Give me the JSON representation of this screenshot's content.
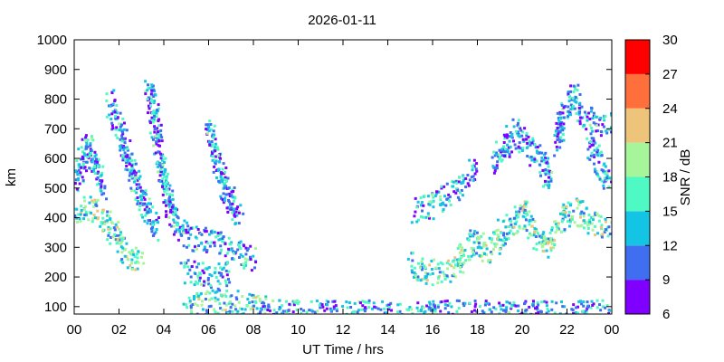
{
  "chart_data": {
    "type": "heatmap",
    "title": "2026-01-11",
    "xlabel": "UT Time / hrs",
    "ylabel": "km",
    "xlim": [
      0,
      24
    ],
    "ylim": [
      75,
      1000
    ],
    "x_ticks": [
      "00",
      "02",
      "04",
      "06",
      "08",
      "10",
      "12",
      "14",
      "16",
      "18",
      "20",
      "22",
      "00"
    ],
    "y_ticks": [
      100,
      200,
      300,
      400,
      500,
      600,
      700,
      800,
      900,
      1000
    ],
    "grid": false,
    "colorbar": {
      "label": "SNR / dB",
      "range": [
        6,
        30
      ],
      "ticks": [
        6,
        9,
        12,
        15,
        18,
        21,
        24,
        27,
        30
      ],
      "bins": [
        {
          "from": 6,
          "to": 9,
          "color": "#7f00ff"
        },
        {
          "from": 9,
          "to": 12,
          "color": "#3f6ff0"
        },
        {
          "from": 12,
          "to": 15,
          "color": "#14c4e4"
        },
        {
          "from": 15,
          "to": 18,
          "color": "#4ff9c4"
        },
        {
          "from": 18,
          "to": 21,
          "color": "#a6f59a"
        },
        {
          "from": 21,
          "to": 24,
          "color": "#eec47a"
        },
        {
          "from": 24,
          "to": 27,
          "color": "#ff6f3c"
        },
        {
          "from": 27,
          "to": 30,
          "color": "#ff0000"
        }
      ]
    },
    "echo_traces": [
      {
        "name": "",
        "snr": 14,
        "points": [
          [
            0.0,
            420
          ],
          [
            0.5,
            440
          ],
          [
            1.0,
            420
          ],
          [
            1.5,
            380
          ],
          [
            2.0,
            320
          ],
          [
            2.5,
            270
          ],
          [
            3.0,
            260
          ]
        ]
      },
      {
        "name": "",
        "snr": 10,
        "points": [
          [
            0.0,
            520
          ],
          [
            0.3,
            600
          ],
          [
            0.6,
            650
          ],
          [
            1.0,
            560
          ],
          [
            1.2,
            500
          ]
        ]
      },
      {
        "name": "",
        "snr": 10,
        "points": [
          [
            1.5,
            800
          ],
          [
            2.0,
            700
          ],
          [
            2.4,
            600
          ],
          [
            2.8,
            500
          ],
          [
            3.2,
            420
          ],
          [
            3.6,
            350
          ]
        ]
      },
      {
        "name": "",
        "snr": 10,
        "points": [
          [
            3.3,
            850
          ],
          [
            3.6,
            700
          ],
          [
            3.9,
            550
          ],
          [
            4.2,
            450
          ],
          [
            4.5,
            380
          ],
          [
            5.0,
            340
          ]
        ]
      },
      {
        "name": "",
        "snr": 10,
        "points": [
          [
            5.0,
            330
          ],
          [
            5.5,
            330
          ],
          [
            6.0,
            330
          ],
          [
            6.5,
            320
          ],
          [
            7.0,
            300
          ],
          [
            7.5,
            280
          ],
          [
            8.0,
            260
          ]
        ]
      },
      {
        "name": "",
        "snr": 10,
        "points": [
          [
            4.8,
            220
          ],
          [
            5.5,
            220
          ],
          [
            6.0,
            210
          ],
          [
            6.5,
            210
          ],
          [
            7.0,
            215
          ]
        ]
      },
      {
        "name": "",
        "snr": 10,
        "points": [
          [
            6.0,
            700
          ],
          [
            6.3,
            600
          ],
          [
            6.6,
            520
          ],
          [
            7.0,
            450
          ],
          [
            7.3,
            400
          ]
        ]
      },
      {
        "name": "",
        "snr": 13,
        "points": [
          [
            5.0,
            110
          ],
          [
            6.0,
            115
          ],
          [
            6.5,
            125
          ],
          [
            7.0,
            120
          ],
          [
            7.5,
            110
          ],
          [
            8.0,
            100
          ],
          [
            8.5,
            95
          ]
        ]
      },
      {
        "name": "",
        "snr": 10,
        "points": [
          [
            8.0,
            85
          ],
          [
            10.0,
            82
          ],
          [
            12.0,
            82
          ],
          [
            14.0,
            82
          ],
          [
            16.0,
            82
          ],
          [
            18.0,
            83
          ],
          [
            20.0,
            82
          ],
          [
            22.0,
            83
          ],
          [
            24.0,
            84
          ]
        ]
      },
      {
        "name": "",
        "snr": 14,
        "points": [
          [
            14.9,
            260
          ],
          [
            15.5,
            215
          ],
          [
            16.0,
            220
          ],
          [
            16.5,
            225
          ],
          [
            17.0,
            240
          ],
          [
            17.4,
            300
          ],
          [
            17.8,
            330
          ],
          [
            18.2,
            290
          ],
          [
            18.6,
            300
          ],
          [
            19.0,
            340
          ]
        ]
      },
      {
        "name": "",
        "snr": 10,
        "points": [
          [
            15.2,
            430
          ],
          [
            15.8,
            440
          ],
          [
            16.3,
            470
          ],
          [
            16.8,
            490
          ],
          [
            17.3,
            520
          ],
          [
            17.8,
            560
          ]
        ]
      },
      {
        "name": "",
        "snr": 14,
        "points": [
          [
            19.0,
            350
          ],
          [
            19.5,
            390
          ],
          [
            20.0,
            420
          ],
          [
            20.5,
            350
          ],
          [
            21.0,
            310
          ],
          [
            21.5,
            360
          ],
          [
            22.0,
            430
          ],
          [
            22.5,
            420
          ],
          [
            23.0,
            380
          ],
          [
            23.5,
            370
          ],
          [
            24.0,
            360
          ]
        ]
      },
      {
        "name": "",
        "snr": 10,
        "points": [
          [
            18.6,
            580
          ],
          [
            19.2,
            650
          ],
          [
            19.6,
            700
          ],
          [
            20.2,
            640
          ],
          [
            20.8,
            600
          ],
          [
            21.2,
            520
          ]
        ]
      },
      {
        "name": "",
        "snr": 10,
        "points": [
          [
            21.5,
            650
          ],
          [
            21.8,
            750
          ],
          [
            22.2,
            820
          ],
          [
            22.6,
            760
          ],
          [
            23.0,
            730
          ],
          [
            23.5,
            720
          ],
          [
            24.0,
            720
          ]
        ]
      },
      {
        "name": "",
        "snr": 10,
        "points": [
          [
            23.0,
            650
          ],
          [
            23.3,
            600
          ],
          [
            23.6,
            550
          ],
          [
            24.0,
            520
          ]
        ]
      }
    ]
  }
}
